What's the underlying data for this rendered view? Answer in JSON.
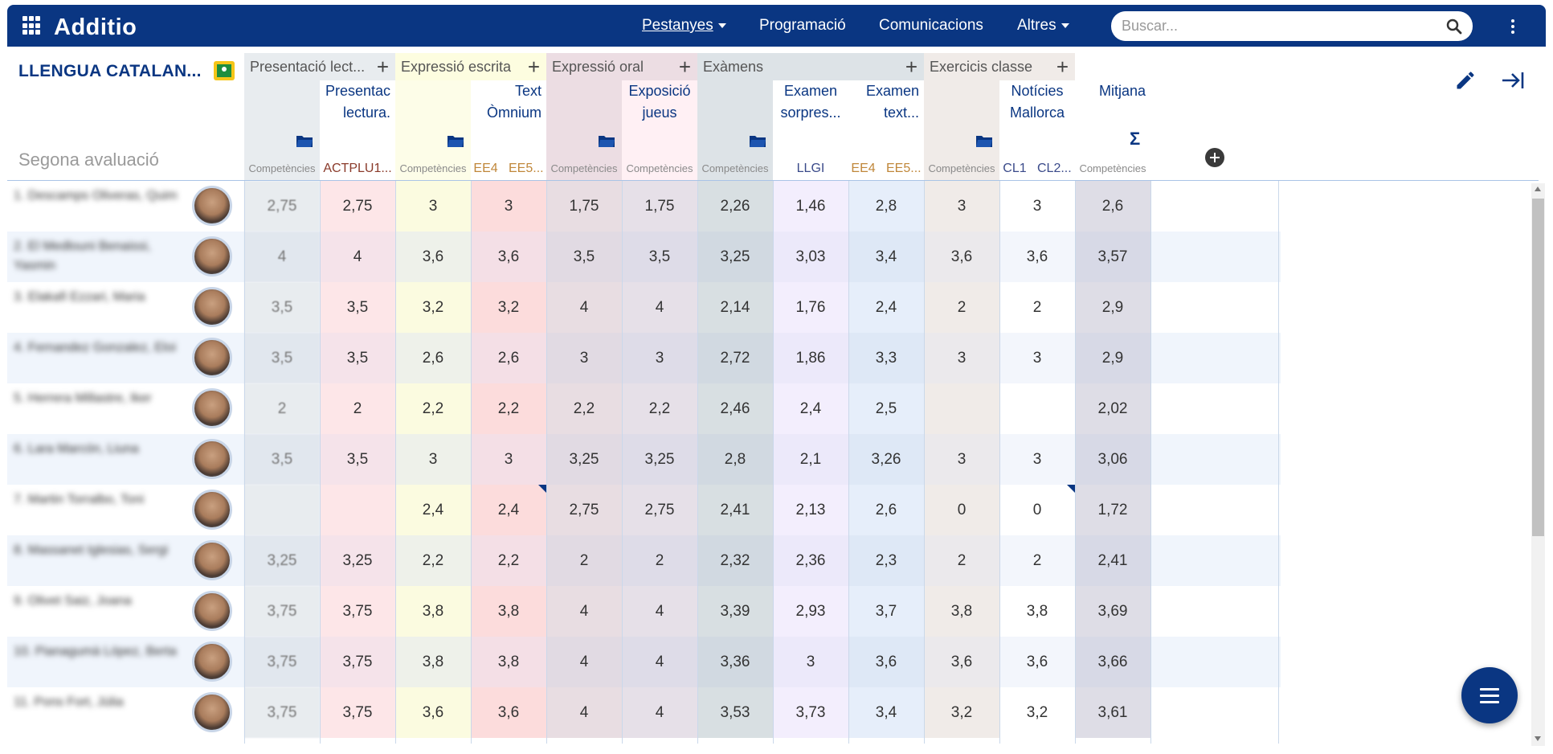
{
  "navbar": {
    "brand": "Additio",
    "items": [
      {
        "label": "Pestanyes",
        "dropdown": true,
        "underline": true
      },
      {
        "label": "Programació",
        "dropdown": false
      },
      {
        "label": "Comunicacions",
        "dropdown": false
      },
      {
        "label": "Altres",
        "dropdown": true
      }
    ],
    "search_placeholder": "Buscar..."
  },
  "header": {
    "course_title": "LLENGUA CATALAN...",
    "term": "Segona avaluació"
  },
  "columns": {
    "groups": [
      {
        "label": "Presentació lect...",
        "color": "#e8ecef"
      },
      {
        "label": "Expressió escrita",
        "color": "#fdfde0"
      },
      {
        "label": "Expressió oral",
        "color": "#ecdde3"
      },
      {
        "label": "Exàmens",
        "color": "#dde3e7"
      },
      {
        "label": "Exercicis classe",
        "color": "#f0ebe8"
      }
    ],
    "headers": [
      {
        "title": "",
        "sub": "Competències"
      },
      {
        "title": "Presentac lectura.",
        "sub": "ACTPLU1..."
      },
      {
        "title": "",
        "sub": "Competències"
      },
      {
        "title": "Text Òmnium",
        "sub_parts": [
          "EE4",
          "EE5..."
        ]
      },
      {
        "title": "",
        "sub": "Competències"
      },
      {
        "title": "Exposició jueus",
        "sub": "Competències"
      },
      {
        "title": "",
        "sub": "Competències"
      },
      {
        "title": "Examen sorpres...",
        "sub": "LLGI"
      },
      {
        "title": "Examen text...",
        "sub_parts": [
          "EE4",
          "EE5..."
        ]
      },
      {
        "title": "",
        "sub": "Competències"
      },
      {
        "title": "Notícies Mallorca",
        "sub_parts": [
          "CL1",
          "CL2..."
        ]
      },
      {
        "title": "Mitjana",
        "sub": "Competències"
      }
    ]
  },
  "students": [
    {
      "name": "1. Descamps Oliveras, Quim",
      "grades": [
        "2,75",
        "2,75",
        "3",
        "3",
        "1,75",
        "1,75",
        "2,26",
        "1,46",
        "2,8",
        "3",
        "3",
        "2,6"
      ]
    },
    {
      "name": "2. El Medlouni Benaissi, Yasmin",
      "grades": [
        "4",
        "4",
        "3,6",
        "3,6",
        "3,5",
        "3,5",
        "3,25",
        "3,03",
        "3,4",
        "3,6",
        "3,6",
        "3,57"
      ]
    },
    {
      "name": "3. Elakafi Ezzari, Maria",
      "grades": [
        "3,5",
        "3,5",
        "3,2",
        "3,2",
        "4",
        "4",
        "2,14",
        "1,76",
        "2,4",
        "2",
        "2",
        "2,9"
      ]
    },
    {
      "name": "4. Fernandez Gonzalez, Eloi",
      "grades": [
        "3,5",
        "3,5",
        "2,6",
        "2,6",
        "3",
        "3",
        "2,72",
        "1,86",
        "3,3",
        "3",
        "3",
        "2,9"
      ]
    },
    {
      "name": "5. Herrera Millastre, Iker",
      "grades": [
        "2",
        "2",
        "2,2",
        "2,2",
        "2,2",
        "2,2",
        "2,46",
        "2,4",
        "2,5",
        "",
        "",
        "2,02"
      ]
    },
    {
      "name": "6. Lara Marcón, Liuna",
      "grades": [
        "3,5",
        "3,5",
        "3",
        "3",
        "3,25",
        "3,25",
        "2,8",
        "2,1",
        "3,26",
        "3",
        "3",
        "3,06"
      ]
    },
    {
      "name": "7. Martin Torralbo, Toni",
      "grades": [
        "",
        "",
        "2,4",
        "2,4",
        "2,75",
        "2,75",
        "2,41",
        "2,13",
        "2,6",
        "0",
        "0",
        "1,72"
      ]
    },
    {
      "name": "8. Massanet Iglesias, Sergi",
      "grades": [
        "3,25",
        "3,25",
        "2,2",
        "2,2",
        "2",
        "2",
        "2,32",
        "2,36",
        "2,3",
        "2",
        "2",
        "2,41"
      ]
    },
    {
      "name": "9. Olivet Saiz, Joana",
      "grades": [
        "3,75",
        "3,75",
        "3,8",
        "3,8",
        "4",
        "4",
        "3,39",
        "2,93",
        "3,7",
        "3,8",
        "3,8",
        "3,69"
      ]
    },
    {
      "name": "10. Pianagumà López, Berta",
      "grades": [
        "3,75",
        "3,75",
        "3,8",
        "3,8",
        "4",
        "4",
        "3,36",
        "3",
        "3,6",
        "3,6",
        "3,6",
        "3,66"
      ]
    },
    {
      "name": "11. Pons Fort, Júlia",
      "grades": [
        "3,75",
        "3,75",
        "3,6",
        "3,6",
        "4",
        "4",
        "3,53",
        "3,73",
        "3,4",
        "3,2",
        "3,2",
        "3,61"
      ]
    }
  ],
  "colors": {
    "navbar": "#0a3682",
    "accent": "#0a3682"
  }
}
